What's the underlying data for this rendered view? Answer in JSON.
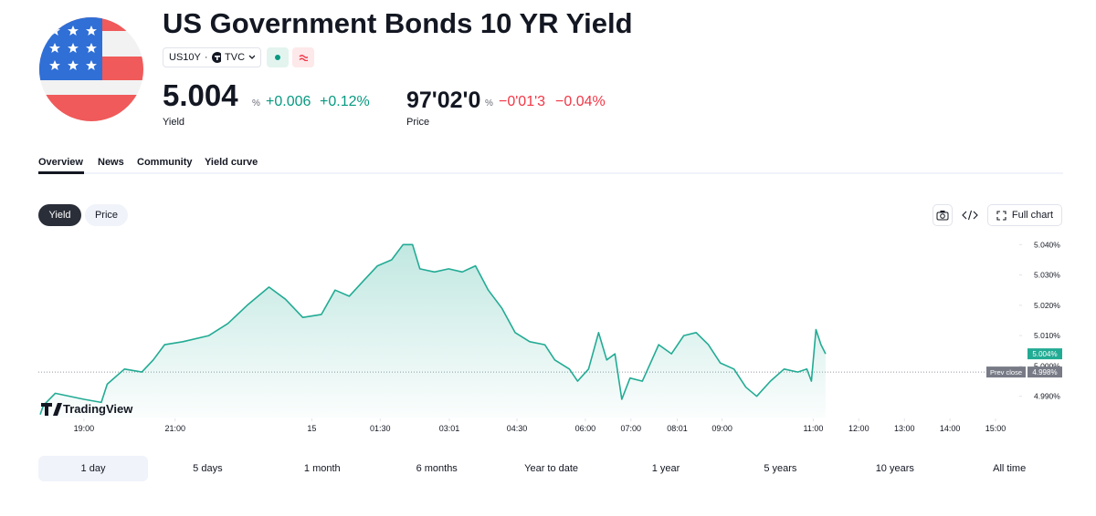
{
  "header": {
    "title": "US Government Bonds 10 YR Yield",
    "symbol": "US10Y",
    "separator": "·",
    "exchange": "TVC"
  },
  "quotes": {
    "yield": {
      "value": "5.004",
      "unit": "%",
      "change": "+0.006",
      "change_pct": "+0.12%",
      "label": "Yield"
    },
    "price": {
      "value": "97'02'0",
      "unit": "%",
      "change": "−0'01'3",
      "change_pct": "−0.04%",
      "label": "Price"
    }
  },
  "tabs": [
    "Overview",
    "News",
    "Community",
    "Yield curve"
  ],
  "toggle": [
    "Yield",
    "Price"
  ],
  "tools": {
    "full_chart": "Full chart"
  },
  "ranges": [
    "1 day",
    "5 days",
    "1 month",
    "6 months",
    "Year to date",
    "1 year",
    "5 years",
    "10 years",
    "All time"
  ],
  "chart_data": {
    "type": "area",
    "watermark": "TradingView",
    "color": "#22ab94",
    "grid": false,
    "x": [
      18.04,
      18.11,
      18.37,
      19.0,
      19.38,
      19.51,
      19.89,
      20.27,
      20.52,
      20.77,
      21.17,
      21.74,
      22.16,
      22.58,
      23.06,
      23.42,
      23.8,
      24.21,
      24.51,
      24.82,
      25.13,
      25.44,
      25.75,
      26.0,
      26.21,
      26.37,
      26.69,
      27.0,
      27.3,
      27.59,
      27.87,
      28.17,
      28.46,
      28.78,
      29.11,
      29.33,
      29.65,
      29.83,
      30.07,
      30.29,
      30.47,
      30.65,
      30.8,
      30.98,
      31.25,
      31.43,
      31.61,
      31.89,
      32.16,
      32.43,
      32.7,
      32.96,
      33.26,
      33.52,
      33.76,
      34.06,
      34.36,
      34.66,
      34.86,
      34.96,
      35.06,
      35.17,
      35.27
    ],
    "values": [
      4.984,
      4.987,
      4.991,
      4.989,
      4.988,
      4.994,
      4.999,
      4.998,
      5.002,
      5.007,
      5.008,
      5.01,
      5.014,
      5.02,
      5.026,
      5.022,
      5.016,
      5.017,
      5.025,
      5.023,
      5.028,
      5.033,
      5.035,
      5.04,
      5.04,
      5.032,
      5.031,
      5.032,
      5.031,
      5.033,
      5.025,
      5.019,
      5.011,
      5.008,
      5.007,
      5.002,
      4.999,
      4.995,
      4.999,
      5.011,
      5.002,
      5.004,
      4.989,
      4.996,
      4.995,
      5.001,
      5.007,
      5.004,
      5.01,
      5.011,
      5.007,
      5.001,
      4.999,
      4.993,
      4.99,
      4.995,
      4.999,
      4.998,
      4.999,
      4.995,
      5.012,
      5.007,
      5.004
    ],
    "xlim": [
      18,
      39.5
    ],
    "ylim": [
      4.983,
      5.044
    ],
    "xticks": [
      {
        "value": 19,
        "label": "19:00"
      },
      {
        "value": 21,
        "label": "21:00"
      },
      {
        "value": 24,
        "label": "15"
      },
      {
        "value": 25.5,
        "label": "01:30"
      },
      {
        "value": 27.0167,
        "label": "03:01"
      },
      {
        "value": 28.5,
        "label": "04:30"
      },
      {
        "value": 30,
        "label": "06:00"
      },
      {
        "value": 31,
        "label": "07:00"
      },
      {
        "value": 32.0167,
        "label": "08:01"
      },
      {
        "value": 33,
        "label": "09:00"
      },
      {
        "value": 35,
        "label": "11:00"
      },
      {
        "value": 36,
        "label": "12:00"
      },
      {
        "value": 37,
        "label": "13:00"
      },
      {
        "value": 38,
        "label": "14:00"
      },
      {
        "value": 39,
        "label": "15:00"
      }
    ],
    "yticks": [
      {
        "value": 4.99,
        "label": "4.990%"
      },
      {
        "value": 5.0,
        "label": "5.000%"
      },
      {
        "value": 5.01,
        "label": "5.010%"
      },
      {
        "value": 5.02,
        "label": "5.020%"
      },
      {
        "value": 5.03,
        "label": "5.030%"
      },
      {
        "value": 5.04,
        "label": "5.040%"
      }
    ],
    "current": {
      "value": 5.004,
      "label": "5.004%"
    },
    "prev_close": {
      "text": "Prev close",
      "value": 4.998,
      "label": "4.998%"
    }
  }
}
